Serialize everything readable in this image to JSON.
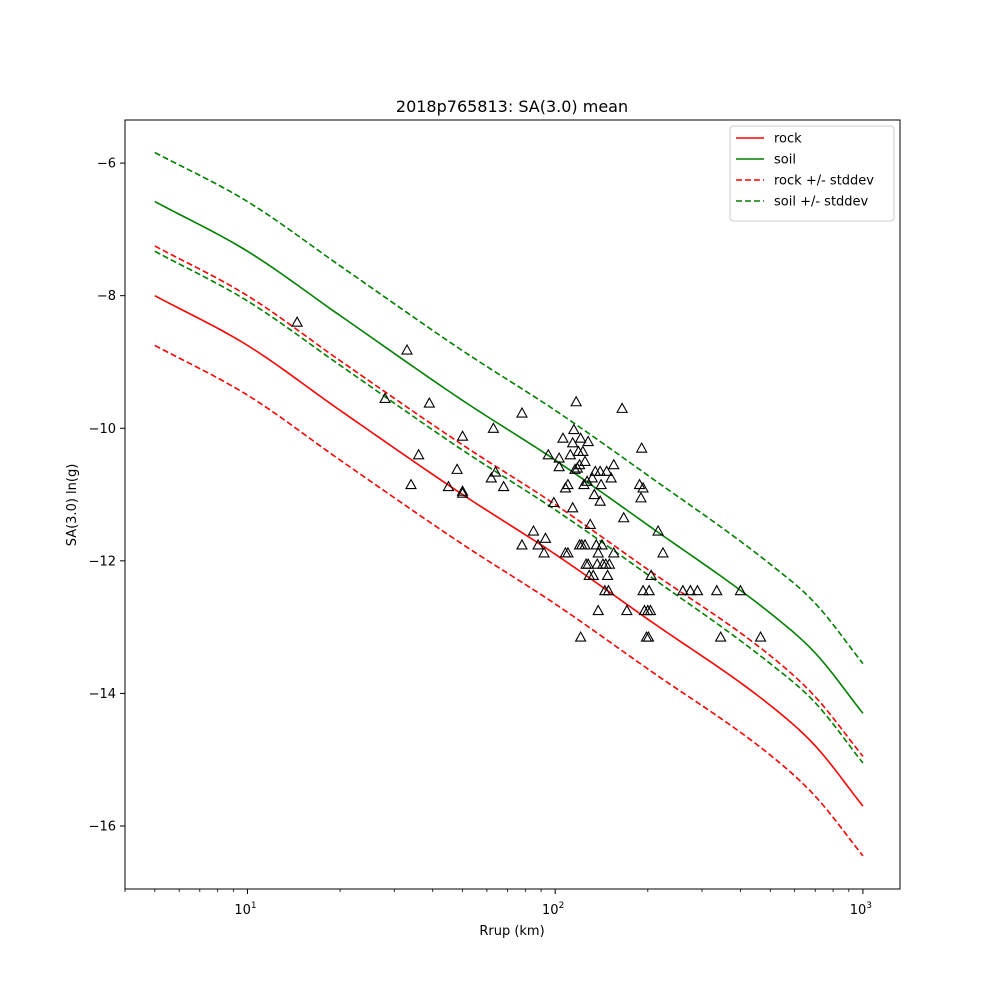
{
  "chart_data": {
    "type": "line",
    "title": "2018p765813: SA(3.0) mean",
    "xlabel": "Rrup (km)",
    "ylabel": "SA(3.0) ln(g)",
    "xscale": "log",
    "xlim": [
      4,
      1320
    ],
    "ylim": [
      -16.95,
      -5.35
    ],
    "x_ticks": [
      {
        "value": 10,
        "mantissa": "10",
        "exponent": "1"
      },
      {
        "value": 100,
        "mantissa": "10",
        "exponent": "2"
      },
      {
        "value": 1000,
        "mantissa": "10",
        "exponent": "3"
      }
    ],
    "y_ticks": [
      {
        "value": -16,
        "label": "−16"
      },
      {
        "value": -14,
        "label": "−14"
      },
      {
        "value": -12,
        "label": "−12"
      },
      {
        "value": -10,
        "label": "−10"
      },
      {
        "value": -8,
        "label": "−8"
      },
      {
        "value": -6,
        "label": "−6"
      }
    ],
    "grid": false,
    "legend_position": "top-right",
    "x": [
      5,
      10,
      20,
      50,
      100,
      200,
      500,
      700,
      1000
    ],
    "series": [
      {
        "name": "rock",
        "color": "#ff0000",
        "dash": "solid",
        "show_in_legend": true,
        "values": [
          -8.0,
          -8.75,
          -9.73,
          -11.0,
          -11.9,
          -12.88,
          -14.18,
          -14.79,
          -15.7
        ]
      },
      {
        "name": "soil",
        "color": "#008000",
        "dash": "solid",
        "show_in_legend": true,
        "values": [
          -6.58,
          -7.33,
          -8.3,
          -9.58,
          -10.48,
          -11.46,
          -12.79,
          -13.39,
          -14.3
        ]
      },
      {
        "name": "rock +/- stddev",
        "color": "#ff0000",
        "dash": "dashed",
        "show_in_legend": true,
        "values": [
          -7.25,
          -8.0,
          -8.98,
          -10.25,
          -11.15,
          -12.13,
          -13.43,
          -14.05,
          -14.95
        ]
      },
      {
        "name": "rock +/- stddev",
        "color": "#ff0000",
        "dash": "dashed",
        "show_in_legend": false,
        "values": [
          -8.75,
          -9.5,
          -10.48,
          -11.75,
          -12.65,
          -13.63,
          -14.93,
          -15.55,
          -16.45
        ]
      },
      {
        "name": "soil +/- stddev",
        "color": "#008000",
        "dash": "dashed",
        "show_in_legend": true,
        "values": [
          -5.84,
          -6.58,
          -7.55,
          -8.83,
          -9.73,
          -10.71,
          -12.05,
          -12.64,
          -13.55
        ]
      },
      {
        "name": "soil +/- stddev",
        "color": "#008000",
        "dash": "dashed",
        "show_in_legend": false,
        "values": [
          -7.33,
          -8.08,
          -9.05,
          -10.33,
          -11.23,
          -12.21,
          -13.55,
          -14.14,
          -15.05
        ]
      }
    ],
    "observations": {
      "marker": "triangle-open",
      "color": "#000000",
      "points": [
        [
          14.5,
          -8.4
        ],
        [
          33,
          -8.82
        ],
        [
          28,
          -9.55
        ],
        [
          39,
          -9.62
        ],
        [
          36,
          -10.4
        ],
        [
          34,
          -10.85
        ],
        [
          48,
          -10.62
        ],
        [
          50,
          -10.12
        ],
        [
          45,
          -10.88
        ],
        [
          50,
          -10.98
        ],
        [
          50,
          -10.95
        ],
        [
          63,
          -10.0
        ],
        [
          62,
          -10.75
        ],
        [
          64,
          -10.66
        ],
        [
          68,
          -10.88
        ],
        [
          78,
          -9.77
        ],
        [
          78,
          -11.76
        ],
        [
          85,
          -11.55
        ],
        [
          88,
          -11.76
        ],
        [
          92,
          -11.88
        ],
        [
          93,
          -11.66
        ],
        [
          95,
          -10.4
        ],
        [
          99,
          -11.12
        ],
        [
          103,
          -10.58
        ],
        [
          103,
          -10.45
        ],
        [
          106,
          -10.15
        ],
        [
          108,
          -10.9
        ],
        [
          110,
          -10.85
        ],
        [
          112,
          -10.4
        ],
        [
          110,
          -11.88
        ],
        [
          108,
          -11.88
        ],
        [
          114,
          -11.2
        ],
        [
          114,
          -10.22
        ],
        [
          115,
          -10.02
        ],
        [
          116,
          -10.62
        ],
        [
          117,
          -9.6
        ],
        [
          118,
          -10.6
        ],
        [
          119,
          -10.35
        ],
        [
          120,
          -10.55
        ],
        [
          120,
          -11.76
        ],
        [
          121,
          -10.15
        ],
        [
          121,
          -13.15
        ],
        [
          122,
          -11.76
        ],
        [
          123,
          -10.35
        ],
        [
          124,
          -10.85
        ],
        [
          125,
          -10.5
        ],
        [
          125,
          -11.76
        ],
        [
          126,
          -12.05
        ],
        [
          127,
          -10.8
        ],
        [
          128,
          -12.05
        ],
        [
          128,
          -10.2
        ],
        [
          129,
          -12.22
        ],
        [
          130,
          -11.45
        ],
        [
          132,
          -10.75
        ],
        [
          133,
          -12.22
        ],
        [
          134,
          -11.0
        ],
        [
          135,
          -10.65
        ],
        [
          136,
          -11.76
        ],
        [
          137,
          -12.05
        ],
        [
          138,
          -11.88
        ],
        [
          138,
          -12.75
        ],
        [
          140,
          -11.1
        ],
        [
          140,
          -10.65
        ],
        [
          141,
          -10.85
        ],
        [
          142,
          -11.76
        ],
        [
          143,
          -12.05
        ],
        [
          145,
          -12.45
        ],
        [
          146,
          -12.05
        ],
        [
          147,
          -10.65
        ],
        [
          148,
          -12.22
        ],
        [
          149,
          -12.45
        ],
        [
          150,
          -12.05
        ],
        [
          152,
          -10.75
        ],
        [
          155,
          -10.55
        ],
        [
          155,
          -11.88
        ],
        [
          165,
          -9.7
        ],
        [
          167,
          -11.35
        ],
        [
          171,
          -12.75
        ],
        [
          188,
          -10.85
        ],
        [
          190,
          -11.05
        ],
        [
          191,
          -10.3
        ],
        [
          193,
          -10.9
        ],
        [
          193,
          -12.45
        ],
        [
          195,
          -12.75
        ],
        [
          198,
          -13.15
        ],
        [
          200,
          -12.75
        ],
        [
          201,
          -13.15
        ],
        [
          202,
          -12.45
        ],
        [
          204,
          -12.75
        ],
        [
          205,
          -12.22
        ],
        [
          216,
          -11.55
        ],
        [
          224,
          -11.88
        ],
        [
          260,
          -12.45
        ],
        [
          275,
          -12.45
        ],
        [
          290,
          -12.45
        ],
        [
          335,
          -12.45
        ],
        [
          345,
          -13.15
        ],
        [
          400,
          -12.45
        ],
        [
          465,
          -13.15
        ]
      ]
    }
  }
}
